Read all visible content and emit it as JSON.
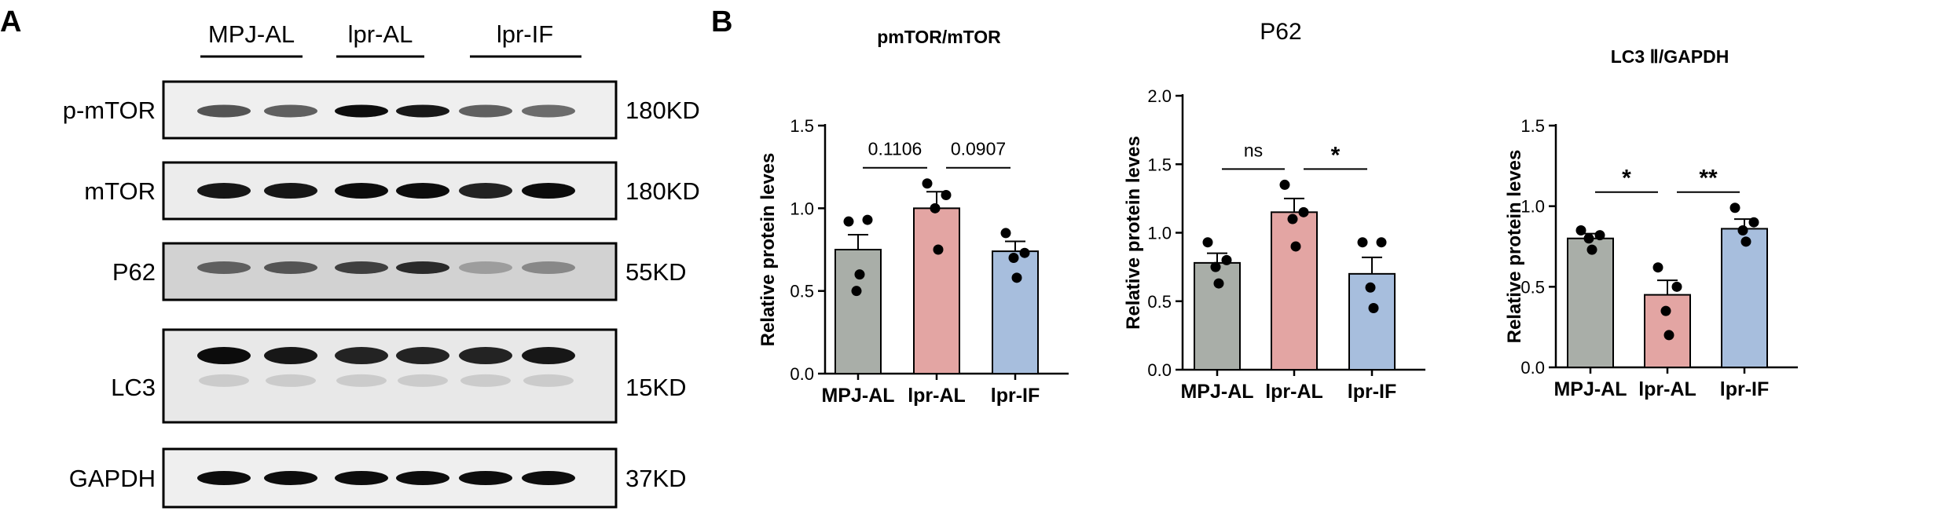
{
  "panels": {
    "a_label": "A",
    "b_label": "B"
  },
  "western_blot": {
    "groups": [
      "MPJ-AL",
      "lpr-AL",
      "lpr-IF"
    ],
    "rows": [
      {
        "protein": "p-mTOR",
        "size": "180KD"
      },
      {
        "protein": "mTOR",
        "size": "180KD"
      },
      {
        "protein": "P62",
        "size": "55KD"
      },
      {
        "protein": "LC3",
        "size": "15KD"
      },
      {
        "protein": "GAPDH",
        "size": "37KD"
      }
    ]
  },
  "colors": {
    "MPJ-AL": "#a9aea8",
    "lpr-AL": "#e3a5a3",
    "lpr-IF": "#a7bedd",
    "axis": "#000000"
  },
  "chart_data": [
    {
      "type": "bar",
      "title": "pmTOR/mTOR",
      "xlabel": "",
      "ylabel": "Relative protein leves",
      "categories": [
        "MPJ-AL",
        "lpr-AL",
        "lpr-IF"
      ],
      "values": [
        0.75,
        1.0,
        0.74
      ],
      "errors": [
        0.09,
        0.1,
        0.06
      ],
      "points": [
        [
          0.92,
          0.93,
          0.5,
          0.6
        ],
        [
          1.15,
          1.08,
          1.0,
          0.75
        ],
        [
          0.85,
          0.73,
          0.7,
          0.58
        ]
      ],
      "ylim": [
        0,
        1.5
      ],
      "yticks": [
        "0.0",
        "0.5",
        "1.0",
        "1.5"
      ],
      "grid": false,
      "significance": [
        {
          "from": 0,
          "to": 1,
          "label": "0.1106"
        },
        {
          "from": 1,
          "to": 2,
          "label": "0.0907"
        }
      ]
    },
    {
      "type": "bar",
      "title": "P62",
      "xlabel": "",
      "ylabel": "Relative protein leves",
      "categories": [
        "MPJ-AL",
        "lpr-AL",
        "lpr-IF"
      ],
      "values": [
        0.78,
        1.15,
        0.7
      ],
      "errors": [
        0.07,
        0.1,
        0.12
      ],
      "points": [
        [
          0.93,
          0.8,
          0.75,
          0.63
        ],
        [
          1.35,
          1.15,
          1.1,
          0.9
        ],
        [
          0.93,
          0.93,
          0.6,
          0.45
        ]
      ],
      "ylim": [
        0,
        2.0
      ],
      "yticks": [
        "0.0",
        "0.5",
        "1.0",
        "1.5",
        "2.0"
      ],
      "grid": false,
      "significance": [
        {
          "from": 0,
          "to": 1,
          "label": "ns"
        },
        {
          "from": 1,
          "to": 2,
          "label": "*"
        }
      ]
    },
    {
      "type": "bar",
      "title": "LC3 Ⅱ/GAPDH",
      "xlabel": "",
      "ylabel": "Relative protein leves",
      "categories": [
        "MPJ-AL",
        "lpr-AL",
        "lpr-IF"
      ],
      "values": [
        0.8,
        0.45,
        0.86
      ],
      "errors": [
        0.03,
        0.09,
        0.06
      ],
      "points": [
        [
          0.85,
          0.82,
          0.8,
          0.73
        ],
        [
          0.62,
          0.5,
          0.35,
          0.2
        ],
        [
          0.99,
          0.9,
          0.85,
          0.78
        ]
      ],
      "ylim": [
        0,
        1.5
      ],
      "yticks": [
        "0.0",
        "0.5",
        "1.0",
        "1.5"
      ],
      "grid": false,
      "significance": [
        {
          "from": 0,
          "to": 1,
          "label": "*"
        },
        {
          "from": 1,
          "to": 2,
          "label": "**"
        }
      ]
    }
  ]
}
